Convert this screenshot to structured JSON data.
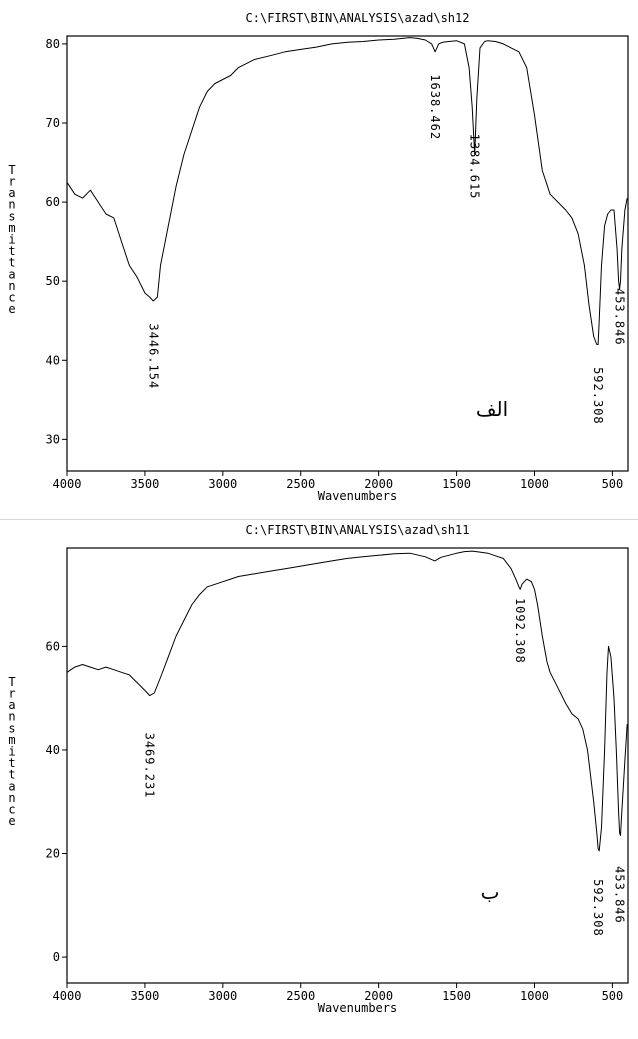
{
  "chart_data": [
    {
      "type": "line",
      "title": "C:\\FIRST\\BIN\\ANALYSIS\\azad\\sh12",
      "xlabel": "Wavenumbers",
      "ylabel": "Transmittance",
      "annotation": "الف",
      "xlim": [
        4000,
        400
      ],
      "ylim": [
        26,
        81
      ],
      "xticks": [
        4000,
        3500,
        3000,
        2500,
        2000,
        1500,
        1000,
        500
      ],
      "yticks": [
        30,
        40,
        50,
        60,
        70,
        80
      ],
      "peaks": [
        {
          "x": 3446.154,
          "label": "3446.154",
          "label_y_top": 48,
          "label_y_bottom": 33
        },
        {
          "x": 1638.462,
          "label": "1638.462",
          "label_y_top": 80,
          "label_y_bottom": 64
        },
        {
          "x": 1384.615,
          "label": "1384.615",
          "label_y_top": 72,
          "label_y_bottom": 57
        },
        {
          "x": 592.308,
          "label": "592.308",
          "label_y_top": 42,
          "label_y_bottom": 29
        },
        {
          "x": 453.846,
          "label": "453.846",
          "label_y_top": 52,
          "label_y_bottom": 39
        }
      ],
      "series": [
        {
          "x": [
            4000,
            3950,
            3900,
            3850,
            3800,
            3750,
            3700,
            3650,
            3600,
            3550,
            3500,
            3470,
            3446,
            3420,
            3400,
            3350,
            3300,
            3250,
            3200,
            3150,
            3100,
            3050,
            3000,
            2950,
            2900,
            2850,
            2800,
            2700,
            2600,
            2500,
            2400,
            2300,
            2200,
            2100,
            2000,
            1900,
            1800,
            1750,
            1700,
            1660,
            1638,
            1615,
            1590,
            1550,
            1500,
            1450,
            1420,
            1400,
            1384,
            1370,
            1350,
            1320,
            1300,
            1250,
            1200,
            1150,
            1100,
            1050,
            1000,
            950,
            900,
            850,
            800,
            760,
            720,
            680,
            650,
            620,
            600,
            592,
            585,
            570,
            550,
            530,
            510,
            490,
            470,
            460,
            454,
            448,
            440,
            420,
            405
          ],
          "y": [
            62.5,
            61,
            60.5,
            61.5,
            60,
            58.5,
            58,
            55,
            52,
            50.5,
            48.5,
            48,
            47.5,
            48,
            52,
            57,
            62,
            66,
            69,
            72,
            74,
            75,
            75.5,
            76,
            77,
            77.5,
            78,
            78.5,
            79,
            79.3,
            79.6,
            80,
            80.2,
            80.3,
            80.5,
            80.6,
            80.8,
            80.7,
            80.5,
            80,
            79,
            80,
            80.2,
            80.3,
            80.4,
            80,
            77,
            72,
            66,
            73,
            79.5,
            80.3,
            80.4,
            80.3,
            80,
            79.5,
            79,
            77,
            71,
            64,
            61,
            60,
            59,
            58,
            56,
            52,
            47,
            43,
            42,
            42,
            45,
            52,
            57,
            58.5,
            59,
            59,
            54,
            50,
            49,
            50,
            54,
            59,
            60.5
          ]
        }
      ]
    },
    {
      "type": "line",
      "title": "C:\\FIRST\\BIN\\ANALYSIS\\azad\\sh11",
      "xlabel": "Wavenumbers",
      "ylabel": "Transmittance",
      "annotation": "ب",
      "xlim": [
        4000,
        400
      ],
      "ylim": [
        -5,
        79
      ],
      "xticks": [
        4000,
        3500,
        3000,
        2500,
        2000,
        1500,
        1000,
        500
      ],
      "yticks": [
        0,
        20,
        40,
        60
      ],
      "peaks": [
        {
          "x": 3469.231,
          "label": "3469.231",
          "label_y_top": 47,
          "label_y_bottom": 27
        },
        {
          "x": 1092.308,
          "label": "1092.308",
          "label_y_top": 74,
          "label_y_bottom": 52
        },
        {
          "x": 592.308,
          "label": "592.308",
          "label_y_top": 20,
          "label_y_bottom": -1
        },
        {
          "x": 453.846,
          "label": "453.846",
          "label_y_top": 24,
          "label_y_bottom": 0
        }
      ],
      "series": [
        {
          "x": [
            4000,
            3950,
            3900,
            3850,
            3800,
            3750,
            3700,
            3650,
            3600,
            3550,
            3500,
            3469,
            3440,
            3400,
            3350,
            3300,
            3250,
            3200,
            3150,
            3100,
            3050,
            3000,
            2950,
            2900,
            2800,
            2700,
            2600,
            2500,
            2400,
            2300,
            2200,
            2100,
            2000,
            1900,
            1800,
            1700,
            1640,
            1600,
            1550,
            1500,
            1450,
            1400,
            1350,
            1300,
            1250,
            1200,
            1150,
            1120,
            1100,
            1092,
            1080,
            1050,
            1020,
            1000,
            980,
            950,
            920,
            900,
            850,
            800,
            760,
            720,
            690,
            660,
            640,
            620,
            600,
            592,
            585,
            570,
            550,
            535,
            525,
            510,
            490,
            475,
            460,
            454,
            448,
            440,
            420,
            405
          ],
          "y": [
            55,
            56,
            56.5,
            56,
            55.5,
            56,
            55.5,
            55,
            54.5,
            53,
            51.5,
            50.5,
            51,
            54,
            58,
            62,
            65,
            68,
            70,
            71.5,
            72,
            72.5,
            73,
            73.5,
            74,
            74.5,
            75,
            75.5,
            76,
            76.5,
            77,
            77.3,
            77.6,
            77.9,
            78,
            77.3,
            76.5,
            77.2,
            77.6,
            78,
            78.3,
            78.4,
            78.2,
            78,
            77.5,
            77,
            75,
            73,
            71.5,
            71,
            72,
            73,
            72.5,
            71,
            68,
            62,
            57,
            55,
            52,
            49,
            47,
            46,
            44,
            40,
            35,
            30,
            24,
            21,
            20.5,
            25,
            40,
            55,
            60,
            58,
            50,
            40,
            28,
            24,
            23.5,
            28,
            38,
            45
          ]
        }
      ]
    }
  ]
}
